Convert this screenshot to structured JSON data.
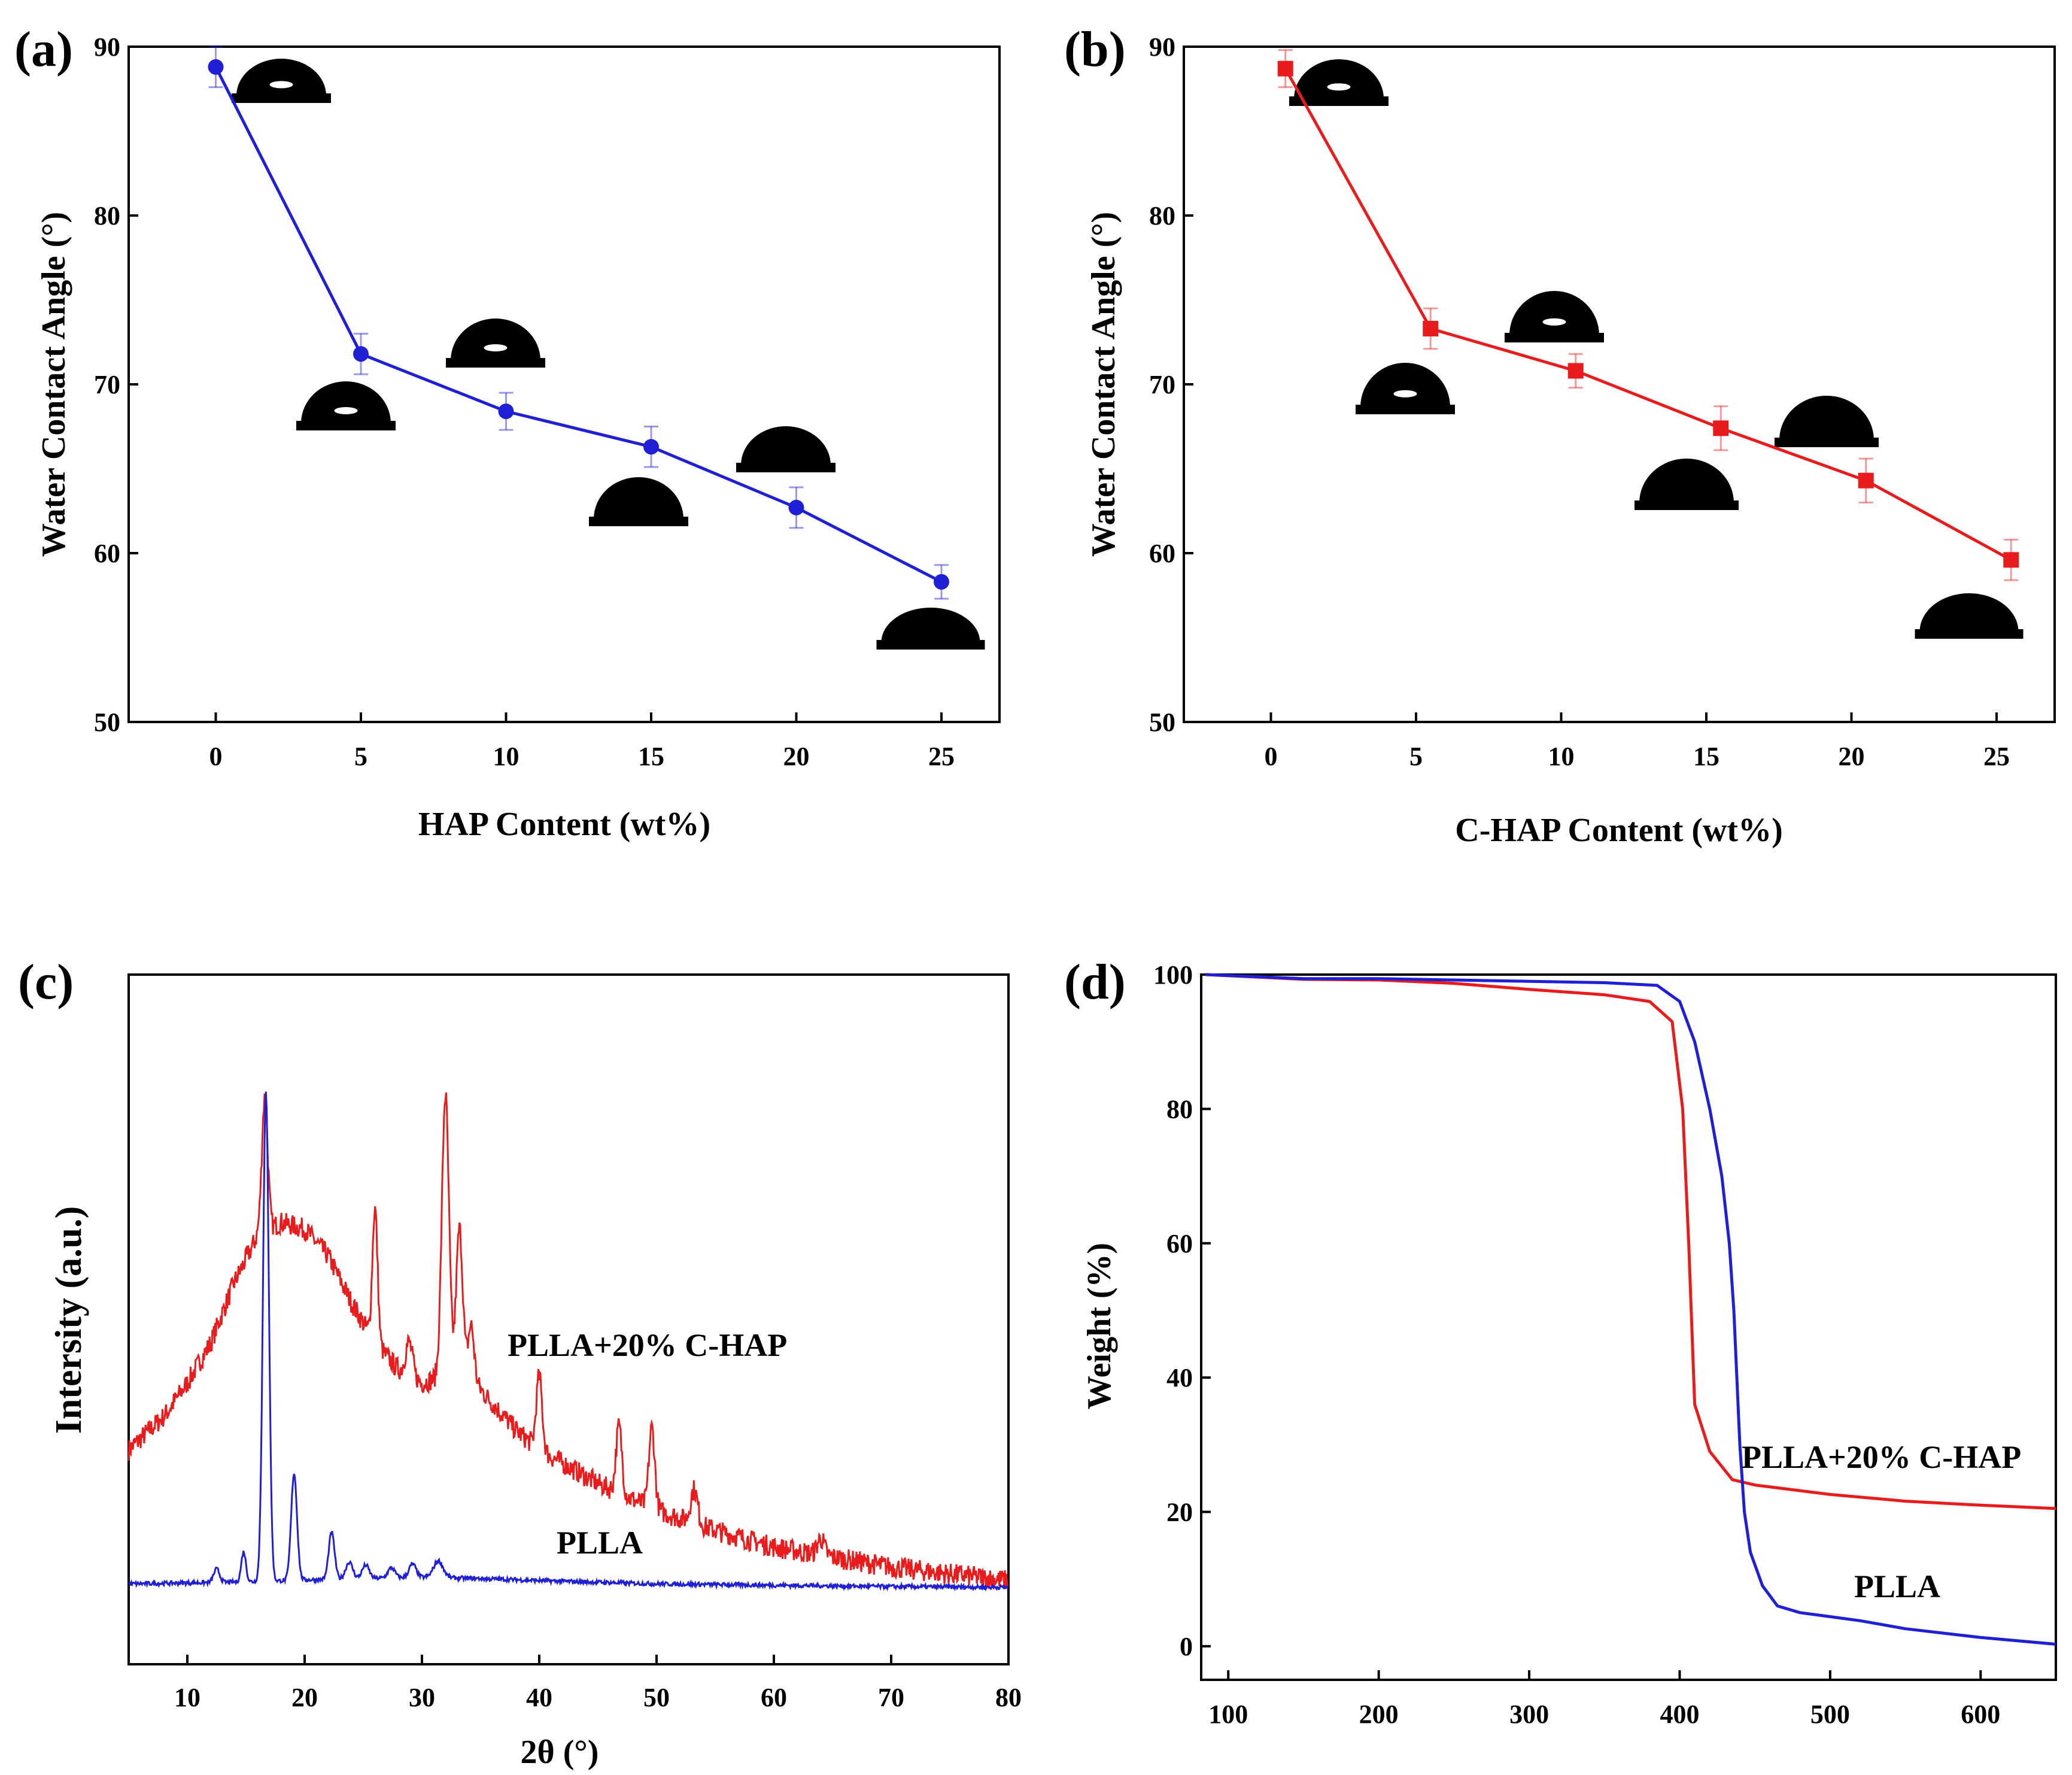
{
  "chart_data": [
    {
      "panel": "(a)",
      "type": "line",
      "x": [
        0,
        5,
        10,
        15,
        20,
        25
      ],
      "series": [
        {
          "name": "HAP",
          "color": "#1f1fd6",
          "values": [
            88.8,
            71.8,
            68.4,
            66.3,
            62.7,
            58.3
          ],
          "error": [
            1.2,
            1.2,
            1.1,
            1.2,
            1.2,
            1.0
          ]
        }
      ],
      "xlabel": "HAP Content (wt%)",
      "ylabel": "Water Contact Angle (°)",
      "xlim": [
        -3,
        27
      ],
      "ylim": [
        50,
        90
      ],
      "xticks": [
        "0",
        "5",
        "10",
        "15",
        "20",
        "25"
      ],
      "yticks": [
        "50",
        "60",
        "70",
        "80",
        "90"
      ],
      "annotations": [],
      "droplets": "contact-angle droplet image near each data point"
    },
    {
      "panel": "(b)",
      "type": "line",
      "x": [
        0.5,
        5.5,
        10.5,
        15.5,
        20.5,
        25.5
      ],
      "series": [
        {
          "name": "C-HAP",
          "color": "#e81c1c",
          "values": [
            88.7,
            73.3,
            70.8,
            67.4,
            64.3,
            59.6
          ],
          "error": [
            1.1,
            1.2,
            1.0,
            1.3,
            1.3,
            1.2
          ]
        }
      ],
      "xlabel": "C-HAP Content (wt%)",
      "ylabel": "Water Contact Angle (°)",
      "xlim": [
        -3,
        27
      ],
      "ylim": [
        50,
        90
      ],
      "xticks": [
        "0",
        "5",
        "10",
        "15",
        "20",
        "25"
      ],
      "yticks": [
        "50",
        "60",
        "70",
        "80",
        "90"
      ],
      "annotations": [],
      "droplets": "contact-angle droplet image near each data point"
    },
    {
      "panel": "(c)",
      "type": "line",
      "x_range": [
        5,
        80
      ],
      "series": [
        {
          "name": "PLLA+20% C-HAP",
          "color": "#e81c1c",
          "baseline": [
            [
              5,
              2.2
            ],
            [
              8,
              2.7
            ],
            [
              10,
              3.2
            ],
            [
              12,
              3.8
            ],
            [
              14,
              4.7
            ],
            [
              16,
              5.4
            ],
            [
              17,
              5.5
            ],
            [
              18,
              5.6
            ],
            [
              20,
              5.5
            ],
            [
              22,
              5.1
            ],
            [
              24,
              4.4
            ],
            [
              26,
              3.8
            ],
            [
              28,
              3.4
            ],
            [
              30,
              3.2
            ],
            [
              32,
              3.3
            ],
            [
              34,
              3.3
            ],
            [
              36,
              2.9
            ],
            [
              38,
              2.5
            ],
            [
              40,
              2.2
            ],
            [
              45,
              1.7
            ],
            [
              50,
              1.3
            ],
            [
              55,
              1.0
            ],
            [
              60,
              0.75
            ],
            [
              65,
              0.6
            ],
            [
              70,
              0.45
            ],
            [
              75,
              0.35
            ],
            [
              80,
              0.25
            ]
          ],
          "peaks": [
            [
              16.6,
              2.0,
              0.25
            ],
            [
              26.0,
              2.0,
              0.22
            ],
            [
              28.9,
              0.5,
              0.3
            ],
            [
              32.0,
              4.2,
              0.3
            ],
            [
              33.2,
              2.2,
              0.28
            ],
            [
              34.2,
              0.8,
              0.25
            ],
            [
              40.0,
              1.1,
              0.25
            ],
            [
              46.8,
              1.0,
              0.25
            ],
            [
              49.6,
              1.2,
              0.25
            ],
            [
              53.2,
              0.5,
              0.3
            ],
            [
              64.0,
              0.25,
              0.3
            ]
          ]
        },
        {
          "name": "PLLA",
          "color": "#1f1fd6",
          "baseline": [
            [
              5,
              0.2
            ],
            [
              15,
              0.23
            ],
            [
              20,
              0.26
            ],
            [
              25,
              0.28
            ],
            [
              30,
              0.3
            ],
            [
              35,
              0.28
            ],
            [
              40,
              0.25
            ],
            [
              50,
              0.2
            ],
            [
              60,
              0.18
            ],
            [
              70,
              0.16
            ],
            [
              80,
              0.15
            ]
          ],
          "peaks": [
            [
              12.5,
              0.2,
              0.25
            ],
            [
              14.8,
              0.45,
              0.2
            ],
            [
              16.7,
              7.3,
              0.25
            ],
            [
              19.1,
              1.6,
              0.25
            ],
            [
              22.3,
              0.7,
              0.25
            ],
            [
              23.8,
              0.25,
              0.3
            ],
            [
              25.2,
              0.2,
              0.3
            ],
            [
              27.4,
              0.15,
              0.3
            ],
            [
              29.2,
              0.2,
              0.3
            ],
            [
              31.4,
              0.25,
              0.4
            ]
          ]
        }
      ],
      "xlabel": "2θ (°)",
      "ylabel": "Intersity (a.u.)",
      "xlim": [
        5,
        80
      ],
      "ylim": [
        -1,
        9.3
      ],
      "xticks": [
        "10",
        "20",
        "30",
        "40",
        "50",
        "60",
        "70",
        "80"
      ],
      "yticks": [],
      "annotations": [
        "PLLA+20% C-HAP",
        "PLLA"
      ]
    },
    {
      "panel": "(d)",
      "type": "line",
      "series": [
        {
          "name": "PLLA+20% C-HAP",
          "color": "#e81c1c",
          "points": [
            [
              85,
              100
            ],
            [
              150,
              99.3
            ],
            [
              200,
              99.2
            ],
            [
              250,
              98.7
            ],
            [
              300,
              97.8
            ],
            [
              350,
              97.0
            ],
            [
              380,
              96.0
            ],
            [
              395,
              93.0
            ],
            [
              402,
              80.0
            ],
            [
              406,
              60.0
            ],
            [
              410,
              36.0
            ],
            [
              420,
              29.0
            ],
            [
              435,
              24.8
            ],
            [
              450,
              24.0
            ],
            [
              500,
              22.6
            ],
            [
              550,
              21.6
            ],
            [
              600,
              21.0
            ],
            [
              650,
              20.5
            ]
          ]
        },
        {
          "name": "PLLA",
          "color": "#1f1fd6",
          "points": [
            [
              85,
              100
            ],
            [
              150,
              99.4
            ],
            [
              200,
              99.4
            ],
            [
              250,
              99.2
            ],
            [
              300,
              99.0
            ],
            [
              350,
              98.8
            ],
            [
              385,
              98.4
            ],
            [
              400,
              96.0
            ],
            [
              410,
              90.0
            ],
            [
              420,
              80.0
            ],
            [
              428,
              70.0
            ],
            [
              433,
              60.0
            ],
            [
              436,
              50.0
            ],
            [
              438,
              40.0
            ],
            [
              440,
              30.0
            ],
            [
              443,
              20.0
            ],
            [
              447,
              14.0
            ],
            [
              455,
              9.0
            ],
            [
              465,
              6.0
            ],
            [
              480,
              5.0
            ],
            [
              500,
              4.4
            ],
            [
              520,
              3.8
            ],
            [
              550,
              2.6
            ],
            [
              600,
              1.3
            ],
            [
              650,
              0.3
            ]
          ]
        }
      ],
      "xlabel": "",
      "ylabel": "Weight (%)",
      "xlim": [
        82,
        650
      ],
      "ylim": [
        -5,
        100
      ],
      "xticks": [
        "100",
        "200",
        "300",
        "400",
        "500",
        "600"
      ],
      "yticks": [
        "0",
        "20",
        "40",
        "60",
        "80",
        "100"
      ],
      "annotations": [
        "PLLA+20% C-HAP",
        "PLLA"
      ]
    }
  ]
}
